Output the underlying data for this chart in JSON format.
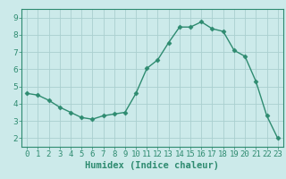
{
  "x": [
    0,
    1,
    2,
    3,
    4,
    5,
    6,
    7,
    8,
    9,
    10,
    11,
    12,
    13,
    14,
    15,
    16,
    17,
    18,
    19,
    20,
    21,
    22,
    23
  ],
  "y": [
    4.6,
    4.5,
    4.2,
    3.8,
    3.5,
    3.2,
    3.1,
    3.3,
    3.4,
    3.5,
    4.6,
    6.05,
    6.55,
    7.55,
    8.45,
    8.45,
    8.75,
    8.35,
    8.2,
    7.1,
    6.75,
    5.3,
    3.3,
    2.0
  ],
  "line_color": "#2e8b70",
  "marker": "D",
  "markersize": 2.5,
  "linewidth": 1.0,
  "xlabel": "Humidex (Indice chaleur)",
  "xlim": [
    -0.5,
    23.5
  ],
  "ylim": [
    1.5,
    9.5
  ],
  "yticks": [
    2,
    3,
    4,
    5,
    6,
    7,
    8,
    9
  ],
  "xticks": [
    0,
    1,
    2,
    3,
    4,
    5,
    6,
    7,
    8,
    9,
    10,
    11,
    12,
    13,
    14,
    15,
    16,
    17,
    18,
    19,
    20,
    21,
    22,
    23
  ],
  "xtick_labels": [
    "0",
    "1",
    "2",
    "3",
    "4",
    "5",
    "6",
    "7",
    "8",
    "9",
    "10",
    "11",
    "12",
    "13",
    "14",
    "15",
    "16",
    "17",
    "18",
    "19",
    "20",
    "21",
    "22",
    "23"
  ],
  "bg_color": "#cceaea",
  "grid_color": "#aacfcf",
  "xlabel_fontsize": 7.5,
  "tick_fontsize": 6.5,
  "spine_color": "#2e8b70"
}
